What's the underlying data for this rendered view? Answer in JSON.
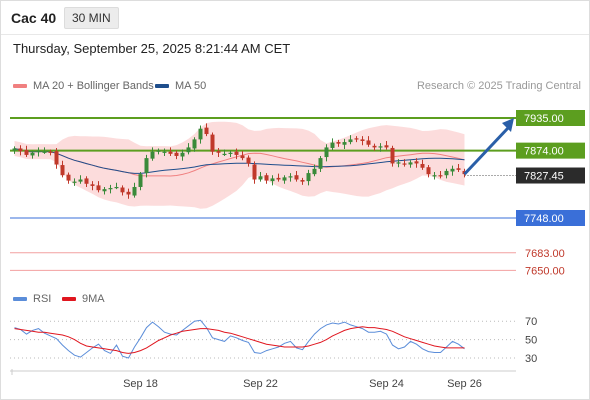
{
  "header": {
    "symbol": "Cac 40",
    "timeframe": "30 MIN"
  },
  "datetime": "Thursday, September 25, 2025 8:21:44 AM CET",
  "credit": "Research © 2025 Trading Central",
  "colors": {
    "bull": "#3a8a3a",
    "bear": "#c0392b",
    "band": "#fbd0d0",
    "ma20": "#f08080",
    "ma50": "#1f4e8c",
    "resistance": "#5c9e1f",
    "support": "#3a6fd8",
    "lower": "#f2a0a0",
    "rsi": "#5b8dd9",
    "rsi_ma": "#e0161f",
    "arrow": "#2a5fa8"
  },
  "chart_data": [
    {
      "type": "candlestick",
      "legend": [
        {
          "label": "MA 20 + Bollinger Bands",
          "color": "#f08080"
        },
        {
          "label": "MA 50",
          "color": "#1f4e8c"
        }
      ],
      "legend_position": "top-left",
      "x_ticks": [
        {
          "label": "Sep 18",
          "i": 21
        },
        {
          "label": "Sep 22",
          "i": 41
        },
        {
          "label": "Sep 24",
          "i": 62
        },
        {
          "label": "Sep 26",
          "i": 75
        }
      ],
      "ylim": [
        7635,
        7962
      ],
      "close": [
        7878,
        7873,
        7866,
        7870,
        7874,
        7872,
        7871,
        7848,
        7828,
        7818,
        7816,
        7820,
        7812,
        7808,
        7800,
        7802,
        7804,
        7806,
        7796,
        7792,
        7806,
        7830,
        7860,
        7872,
        7874,
        7872,
        7868,
        7864,
        7870,
        7880,
        7895,
        7915,
        7905,
        7872,
        7870,
        7868,
        7870,
        7866,
        7860,
        7850,
        7820,
        7826,
        7818,
        7822,
        7820,
        7824,
        7826,
        7820,
        7816,
        7832,
        7840,
        7860,
        7880,
        7889,
        7887,
        7890,
        7895,
        7896,
        7892,
        7885,
        7880,
        7882,
        7880,
        7850,
        7852,
        7848,
        7852,
        7850,
        7842,
        7830,
        7828,
        7826,
        7836,
        7840,
        7838,
        7830
      ],
      "levels": [
        {
          "value": "7935.00",
          "kind": "resistance"
        },
        {
          "value": "7874.00",
          "kind": "resistance"
        },
        {
          "value": "7827.45",
          "kind": "current"
        },
        {
          "value": "7748.00",
          "kind": "support"
        },
        {
          "value": "7683.00",
          "kind": "lower"
        },
        {
          "value": "7650.00",
          "kind": "lower"
        }
      ]
    },
    {
      "type": "line",
      "legend": [
        {
          "label": "RSI",
          "color": "#5b8dd9"
        },
        {
          "label": "9MA",
          "color": "#e0161f"
        }
      ],
      "y_ticks": [
        "70",
        "50",
        "30"
      ],
      "ylim": [
        20,
        80
      ],
      "series": [
        {
          "name": "RSI",
          "values": [
            63,
            61,
            56,
            60,
            62,
            57,
            54,
            51,
            44,
            38,
            33,
            31,
            36,
            41,
            45,
            38,
            35,
            44,
            32,
            30,
            42,
            52,
            63,
            69,
            64,
            58,
            56,
            55,
            60,
            65,
            70,
            71,
            63,
            52,
            50,
            48,
            54,
            52,
            49,
            47,
            36,
            35,
            38,
            40,
            42,
            46,
            48,
            41,
            39,
            48,
            56,
            62,
            66,
            68,
            67,
            69,
            66,
            64,
            62,
            58,
            58,
            59,
            56,
            44,
            40,
            42,
            48,
            45,
            40,
            37,
            36,
            36,
            42,
            48,
            45,
            40
          ]
        },
        {
          "name": "9MA",
          "values": [
            62,
            61,
            60,
            59,
            58,
            58,
            57,
            56,
            55,
            53,
            50,
            46,
            43,
            42,
            41,
            40,
            39,
            38,
            36,
            35,
            36,
            38,
            41,
            45,
            49,
            52,
            55,
            57,
            59,
            60,
            61,
            62,
            62,
            61,
            60,
            58,
            57,
            55,
            53,
            51,
            49,
            47,
            45,
            44,
            43,
            42,
            42,
            42,
            42,
            43,
            45,
            47,
            50,
            54,
            57,
            60,
            62,
            63,
            64,
            63,
            63,
            62,
            61,
            59,
            56,
            53,
            51,
            49,
            47,
            45,
            43,
            42,
            41,
            41,
            41,
            41
          ]
        }
      ]
    }
  ]
}
